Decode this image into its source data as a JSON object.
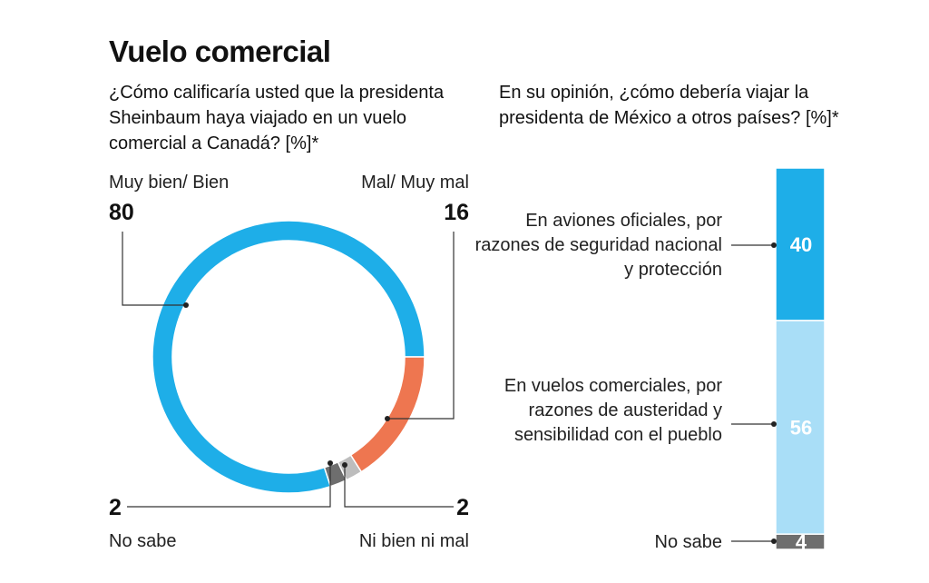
{
  "title": "Vuelo comercial",
  "chart_data": [
    {
      "type": "pie",
      "style": "donut",
      "title": "¿Cómo calificaría usted que la presidenta Sheinbaum haya viajado en un vuelo comercial a Canadá? [%]*",
      "slices": [
        {
          "label": "Muy bien/ Bien",
          "value": 80,
          "color": "#1EAEE8"
        },
        {
          "label": "Mal/ Muy mal",
          "value": 16,
          "color": "#EE7650"
        },
        {
          "label": "Ni bien ni mal",
          "value": 2,
          "color": "#BDBDBD"
        },
        {
          "label": "No sabe",
          "value": 2,
          "color": "#6E6E6E"
        }
      ]
    },
    {
      "type": "bar",
      "style": "stacked-100",
      "title": "En su opinión, ¿cómo debería viajar la presidenta de México a otros países? [%]*",
      "segments": [
        {
          "label": "En aviones oficiales, por razones de seguridad nacional y protección",
          "value": 40,
          "color": "#1EAEE8"
        },
        {
          "label": "En vuelos comerciales, por razones de austeridad y sensibilidad con el pueblo",
          "value": 56,
          "color": "#A9DEF7"
        },
        {
          "label": "No sabe",
          "value": 4,
          "color": "#6E6E6E"
        }
      ]
    }
  ]
}
